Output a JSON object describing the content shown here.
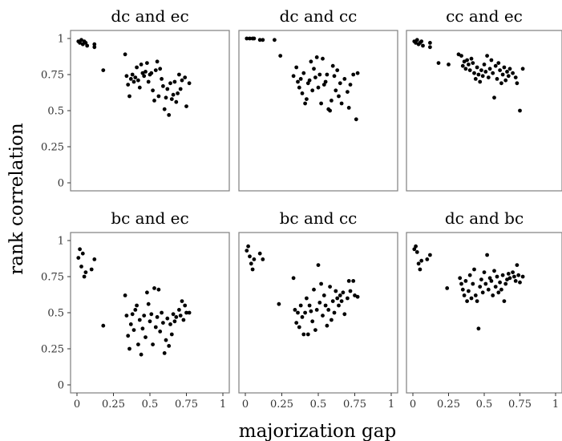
{
  "chart_data": {
    "type": "scatter",
    "xlabel": "majorization gap",
    "ylabel": "rank correlation",
    "xlim": [
      0,
      1
    ],
    "ylim": [
      0,
      1
    ],
    "x_ticks": [
      0,
      0.25,
      0.5,
      0.75,
      1
    ],
    "x_tick_labels": [
      "0",
      "0.25",
      "0.5",
      "0.75",
      "1"
    ],
    "y_ticks": [
      0,
      0.25,
      0.5,
      0.75,
      1
    ],
    "y_tick_labels": [
      "0",
      "0.25",
      "0.5",
      "0.75",
      "1"
    ],
    "grid": false,
    "layout": "2x3 facets",
    "point_color": "#000000",
    "panels": [
      {
        "title": "dc and ec",
        "points": [
          [
            0.01,
            0.98
          ],
          [
            0.02,
            0.97
          ],
          [
            0.03,
            0.99
          ],
          [
            0.04,
            0.96
          ],
          [
            0.05,
            0.98
          ],
          [
            0.06,
            0.97
          ],
          [
            0.07,
            0.95
          ],
          [
            0.12,
            0.96
          ],
          [
            0.12,
            0.94
          ],
          [
            0.18,
            0.78
          ],
          [
            0.33,
            0.89
          ],
          [
            0.34,
            0.74
          ],
          [
            0.35,
            0.68
          ],
          [
            0.36,
            0.6
          ],
          [
            0.37,
            0.72
          ],
          [
            0.38,
            0.75
          ],
          [
            0.39,
            0.7
          ],
          [
            0.4,
            0.73
          ],
          [
            0.41,
            0.8
          ],
          [
            0.42,
            0.71
          ],
          [
            0.43,
            0.66
          ],
          [
            0.44,
            0.82
          ],
          [
            0.45,
            0.76
          ],
          [
            0.46,
            0.74
          ],
          [
            0.47,
            0.77
          ],
          [
            0.48,
            0.83
          ],
          [
            0.49,
            0.7
          ],
          [
            0.5,
            0.75
          ],
          [
            0.51,
            0.76
          ],
          [
            0.52,
            0.64
          ],
          [
            0.53,
            0.57
          ],
          [
            0.54,
            0.78
          ],
          [
            0.55,
            0.84
          ],
          [
            0.56,
            0.6
          ],
          [
            0.57,
            0.79
          ],
          [
            0.58,
            0.72
          ],
          [
            0.59,
            0.67
          ],
          [
            0.6,
            0.51
          ],
          [
            0.61,
            0.59
          ],
          [
            0.62,
            0.65
          ],
          [
            0.63,
            0.47
          ],
          [
            0.64,
            0.69
          ],
          [
            0.65,
            0.58
          ],
          [
            0.66,
            0.61
          ],
          [
            0.67,
            0.7
          ],
          [
            0.68,
            0.56
          ],
          [
            0.69,
            0.62
          ],
          [
            0.7,
            0.75
          ],
          [
            0.71,
            0.65
          ],
          [
            0.72,
            0.71
          ],
          [
            0.74,
            0.73
          ],
          [
            0.75,
            0.53
          ],
          [
            0.77,
            0.69
          ]
        ]
      },
      {
        "title": "dc and cc",
        "points": [
          [
            0.01,
            1.0
          ],
          [
            0.03,
            1.0
          ],
          [
            0.05,
            1.0
          ],
          [
            0.06,
            1.0
          ],
          [
            0.1,
            0.99
          ],
          [
            0.12,
            0.99
          ],
          [
            0.2,
            0.99
          ],
          [
            0.24,
            0.88
          ],
          [
            0.33,
            0.74
          ],
          [
            0.35,
            0.8
          ],
          [
            0.36,
            0.7
          ],
          [
            0.37,
            0.66
          ],
          [
            0.38,
            0.72
          ],
          [
            0.39,
            0.62
          ],
          [
            0.4,
            0.76
          ],
          [
            0.41,
            0.55
          ],
          [
            0.42,
            0.58
          ],
          [
            0.43,
            0.69
          ],
          [
            0.44,
            0.71
          ],
          [
            0.45,
            0.84
          ],
          [
            0.46,
            0.64
          ],
          [
            0.47,
            0.79
          ],
          [
            0.48,
            0.73
          ],
          [
            0.49,
            0.87
          ],
          [
            0.5,
            0.66
          ],
          [
            0.51,
            0.75
          ],
          [
            0.52,
            0.55
          ],
          [
            0.53,
            0.86
          ],
          [
            0.54,
            0.68
          ],
          [
            0.55,
            0.7
          ],
          [
            0.56,
            0.75
          ],
          [
            0.57,
            0.51
          ],
          [
            0.58,
            0.5
          ],
          [
            0.59,
            0.57
          ],
          [
            0.6,
            0.81
          ],
          [
            0.61,
            0.74
          ],
          [
            0.62,
            0.64
          ],
          [
            0.63,
            0.78
          ],
          [
            0.64,
            0.6
          ],
          [
            0.65,
            0.69
          ],
          [
            0.66,
            0.55
          ],
          [
            0.68,
            0.72
          ],
          [
            0.7,
            0.63
          ],
          [
            0.71,
            0.52
          ],
          [
            0.72,
            0.68
          ],
          [
            0.74,
            0.75
          ],
          [
            0.76,
            0.44
          ],
          [
            0.77,
            0.76
          ]
        ]
      },
      {
        "title": "cc and ec",
        "points": [
          [
            0.01,
            0.98
          ],
          [
            0.02,
            0.97
          ],
          [
            0.03,
            0.99
          ],
          [
            0.04,
            0.96
          ],
          [
            0.05,
            0.97
          ],
          [
            0.06,
            0.98
          ],
          [
            0.07,
            0.95
          ],
          [
            0.12,
            0.97
          ],
          [
            0.12,
            0.94
          ],
          [
            0.18,
            0.83
          ],
          [
            0.25,
            0.82
          ],
          [
            0.32,
            0.89
          ],
          [
            0.34,
            0.88
          ],
          [
            0.35,
            0.81
          ],
          [
            0.36,
            0.84
          ],
          [
            0.37,
            0.79
          ],
          [
            0.38,
            0.85
          ],
          [
            0.39,
            0.82
          ],
          [
            0.4,
            0.78
          ],
          [
            0.41,
            0.86
          ],
          [
            0.42,
            0.83
          ],
          [
            0.43,
            0.76
          ],
          [
            0.44,
            0.72
          ],
          [
            0.45,
            0.8
          ],
          [
            0.46,
            0.75
          ],
          [
            0.47,
            0.7
          ],
          [
            0.48,
            0.78
          ],
          [
            0.49,
            0.74
          ],
          [
            0.5,
            0.82
          ],
          [
            0.51,
            0.77
          ],
          [
            0.52,
            0.88
          ],
          [
            0.53,
            0.73
          ],
          [
            0.54,
            0.79
          ],
          [
            0.55,
            0.85
          ],
          [
            0.56,
            0.76
          ],
          [
            0.57,
            0.59
          ],
          [
            0.58,
            0.81
          ],
          [
            0.59,
            0.72
          ],
          [
            0.6,
            0.83
          ],
          [
            0.61,
            0.78
          ],
          [
            0.62,
            0.69
          ],
          [
            0.63,
            0.75
          ],
          [
            0.64,
            0.8
          ],
          [
            0.65,
            0.71
          ],
          [
            0.66,
            0.77
          ],
          [
            0.67,
            0.74
          ],
          [
            0.68,
            0.79
          ],
          [
            0.7,
            0.76
          ],
          [
            0.72,
            0.73
          ],
          [
            0.73,
            0.69
          ],
          [
            0.75,
            0.5
          ],
          [
            0.77,
            0.79
          ]
        ]
      },
      {
        "title": "bc and ec",
        "points": [
          [
            0.01,
            0.88
          ],
          [
            0.02,
            0.94
          ],
          [
            0.03,
            0.82
          ],
          [
            0.04,
            0.91
          ],
          [
            0.05,
            0.75
          ],
          [
            0.06,
            0.78
          ],
          [
            0.1,
            0.8
          ],
          [
            0.12,
            0.87
          ],
          [
            0.18,
            0.41
          ],
          [
            0.33,
            0.62
          ],
          [
            0.34,
            0.48
          ],
          [
            0.35,
            0.34
          ],
          [
            0.36,
            0.25
          ],
          [
            0.37,
            0.42
          ],
          [
            0.38,
            0.49
          ],
          [
            0.39,
            0.38
          ],
          [
            0.4,
            0.52
          ],
          [
            0.41,
            0.55
          ],
          [
            0.42,
            0.28
          ],
          [
            0.43,
            0.45
          ],
          [
            0.44,
            0.21
          ],
          [
            0.45,
            0.39
          ],
          [
            0.46,
            0.48
          ],
          [
            0.47,
            0.33
          ],
          [
            0.48,
            0.64
          ],
          [
            0.49,
            0.56
          ],
          [
            0.5,
            0.44
          ],
          [
            0.51,
            0.49
          ],
          [
            0.52,
            0.28
          ],
          [
            0.53,
            0.67
          ],
          [
            0.54,
            0.4
          ],
          [
            0.55,
            0.47
          ],
          [
            0.56,
            0.66
          ],
          [
            0.57,
            0.37
          ],
          [
            0.58,
            0.5
          ],
          [
            0.59,
            0.43
          ],
          [
            0.6,
            0.22
          ],
          [
            0.61,
            0.31
          ],
          [
            0.62,
            0.46
          ],
          [
            0.63,
            0.27
          ],
          [
            0.64,
            0.42
          ],
          [
            0.65,
            0.35
          ],
          [
            0.66,
            0.49
          ],
          [
            0.67,
            0.44
          ],
          [
            0.68,
            0.47
          ],
          [
            0.7,
            0.52
          ],
          [
            0.71,
            0.48
          ],
          [
            0.72,
            0.58
          ],
          [
            0.73,
            0.45
          ],
          [
            0.74,
            0.55
          ],
          [
            0.75,
            0.5
          ],
          [
            0.77,
            0.5
          ]
        ]
      },
      {
        "title": "bc and cc",
        "points": [
          [
            0.01,
            0.93
          ],
          [
            0.02,
            0.96
          ],
          [
            0.03,
            0.89
          ],
          [
            0.04,
            0.84
          ],
          [
            0.05,
            0.8
          ],
          [
            0.06,
            0.87
          ],
          [
            0.1,
            0.91
          ],
          [
            0.12,
            0.87
          ],
          [
            0.23,
            0.56
          ],
          [
            0.33,
            0.74
          ],
          [
            0.34,
            0.52
          ],
          [
            0.35,
            0.43
          ],
          [
            0.36,
            0.5
          ],
          [
            0.37,
            0.4
          ],
          [
            0.38,
            0.55
          ],
          [
            0.39,
            0.47
          ],
          [
            0.4,
            0.35
          ],
          [
            0.41,
            0.5
          ],
          [
            0.42,
            0.6
          ],
          [
            0.43,
            0.35
          ],
          [
            0.44,
            0.55
          ],
          [
            0.45,
            0.51
          ],
          [
            0.46,
            0.44
          ],
          [
            0.47,
            0.66
          ],
          [
            0.48,
            0.38
          ],
          [
            0.49,
            0.52
          ],
          [
            0.5,
            0.83
          ],
          [
            0.51,
            0.57
          ],
          [
            0.52,
            0.7
          ],
          [
            0.53,
            0.48
          ],
          [
            0.54,
            0.62
          ],
          [
            0.55,
            0.55
          ],
          [
            0.56,
            0.41
          ],
          [
            0.57,
            0.52
          ],
          [
            0.58,
            0.68
          ],
          [
            0.59,
            0.45
          ],
          [
            0.6,
            0.58
          ],
          [
            0.61,
            0.5
          ],
          [
            0.62,
            0.65
          ],
          [
            0.63,
            0.6
          ],
          [
            0.64,
            0.55
          ],
          [
            0.65,
            0.62
          ],
          [
            0.66,
            0.58
          ],
          [
            0.67,
            0.64
          ],
          [
            0.68,
            0.49
          ],
          [
            0.7,
            0.6
          ],
          [
            0.71,
            0.72
          ],
          [
            0.72,
            0.65
          ],
          [
            0.74,
            0.72
          ],
          [
            0.75,
            0.62
          ],
          [
            0.77,
            0.61
          ]
        ]
      },
      {
        "title": "dc and bc",
        "points": [
          [
            0.01,
            0.94
          ],
          [
            0.02,
            0.96
          ],
          [
            0.03,
            0.92
          ],
          [
            0.04,
            0.84
          ],
          [
            0.05,
            0.8
          ],
          [
            0.06,
            0.86
          ],
          [
            0.1,
            0.87
          ],
          [
            0.12,
            0.9
          ],
          [
            0.24,
            0.67
          ],
          [
            0.33,
            0.74
          ],
          [
            0.34,
            0.7
          ],
          [
            0.35,
            0.66
          ],
          [
            0.36,
            0.62
          ],
          [
            0.37,
            0.72
          ],
          [
            0.38,
            0.58
          ],
          [
            0.39,
            0.65
          ],
          [
            0.4,
            0.76
          ],
          [
            0.41,
            0.6
          ],
          [
            0.42,
            0.7
          ],
          [
            0.43,
            0.8
          ],
          [
            0.44,
            0.62
          ],
          [
            0.45,
            0.58
          ],
          [
            0.46,
            0.39
          ],
          [
            0.47,
            0.68
          ],
          [
            0.48,
            0.73
          ],
          [
            0.49,
            0.64
          ],
          [
            0.5,
            0.78
          ],
          [
            0.51,
            0.7
          ],
          [
            0.52,
            0.9
          ],
          [
            0.53,
            0.66
          ],
          [
            0.54,
            0.74
          ],
          [
            0.55,
            0.72
          ],
          [
            0.56,
            0.62
          ],
          [
            0.57,
            0.79
          ],
          [
            0.58,
            0.68
          ],
          [
            0.59,
            0.75
          ],
          [
            0.6,
            0.64
          ],
          [
            0.61,
            0.71
          ],
          [
            0.62,
            0.66
          ],
          [
            0.63,
            0.76
          ],
          [
            0.64,
            0.58
          ],
          [
            0.65,
            0.7
          ],
          [
            0.66,
            0.73
          ],
          [
            0.67,
            0.77
          ],
          [
            0.68,
            0.74
          ],
          [
            0.7,
            0.78
          ],
          [
            0.71,
            0.75
          ],
          [
            0.72,
            0.72
          ],
          [
            0.73,
            0.83
          ],
          [
            0.74,
            0.76
          ],
          [
            0.75,
            0.71
          ],
          [
            0.77,
            0.75
          ]
        ]
      }
    ]
  }
}
